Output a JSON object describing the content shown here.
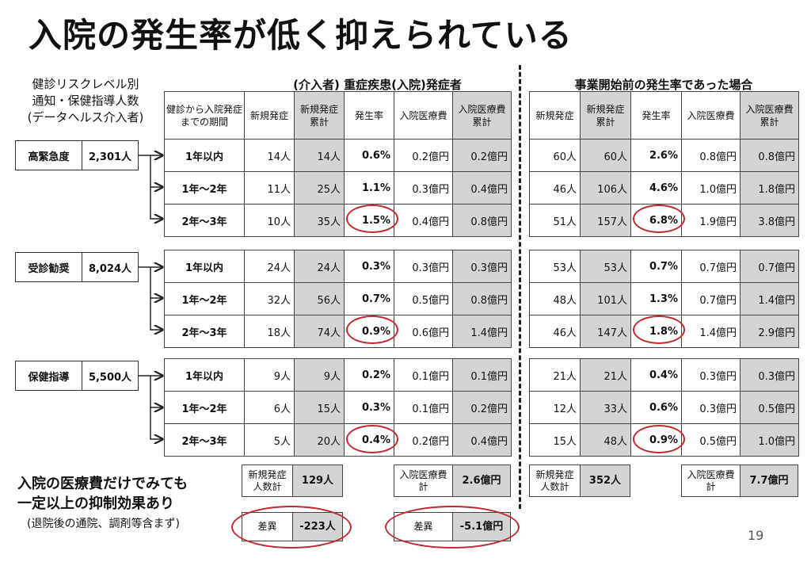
{
  "title": "入院の発生率が低く抑えられている",
  "left_label": [
    "健診リスクレベル別",
    "通知・保健指導人数",
    "(データヘルス介入者)"
  ],
  "group_left_title": "(介入者) 重症疾患(入院)発症者",
  "group_right_title": "事業開始前の発生率であった場合",
  "headers": {
    "period": "健診から入院発症までの期間",
    "new": "新規発症",
    "cum": "新規発症累計",
    "rate": "発生率",
    "cost": "入院医療費",
    "cost_cum": "入院医療費累計"
  },
  "levels": [
    {
      "name": "高緊急度",
      "count": "2,301人"
    },
    {
      "name": "受診勧奨",
      "count": "8,024人"
    },
    {
      "name": "保健指導",
      "count": "5,500人"
    }
  ],
  "periods": [
    "1年以内",
    "1年〜2年",
    "2年〜3年"
  ],
  "left_rows": [
    [
      [
        "14人",
        "14人",
        "0.6%",
        "0.2億円",
        "0.2億円"
      ],
      [
        "11人",
        "25人",
        "1.1%",
        "0.3億円",
        "0.4億円"
      ],
      [
        "10人",
        "35人",
        "1.5%",
        "0.4億円",
        "0.8億円"
      ]
    ],
    [
      [
        "24人",
        "24人",
        "0.3%",
        "0.3億円",
        "0.3億円"
      ],
      [
        "32人",
        "56人",
        "0.7%",
        "0.5億円",
        "0.8億円"
      ],
      [
        "18人",
        "74人",
        "0.9%",
        "0.6億円",
        "1.4億円"
      ]
    ],
    [
      [
        "9人",
        "9人",
        "0.2%",
        "0.1億円",
        "0.1億円"
      ],
      [
        "6人",
        "15人",
        "0.3%",
        "0.1億円",
        "0.2億円"
      ],
      [
        "5人",
        "20人",
        "0.4%",
        "0.2億円",
        "0.4億円"
      ]
    ]
  ],
  "right_rows": [
    [
      [
        "60人",
        "60人",
        "2.6%",
        "0.8億円",
        "0.8億円"
      ],
      [
        "46人",
        "106人",
        "4.6%",
        "1.0億円",
        "1.8億円"
      ],
      [
        "51人",
        "157人",
        "6.8%",
        "1.9億円",
        "3.8億円"
      ]
    ],
    [
      [
        "53人",
        "53人",
        "0.7%",
        "0.7億円",
        "0.7億円"
      ],
      [
        "48人",
        "101人",
        "1.3%",
        "0.7億円",
        "1.4億円"
      ],
      [
        "46人",
        "147人",
        "1.8%",
        "1.4億円",
        "2.9億円"
      ]
    ],
    [
      [
        "21人",
        "21人",
        "0.4%",
        "0.3億円",
        "0.3億円"
      ],
      [
        "12人",
        "33人",
        "0.6%",
        "0.3億円",
        "0.5億円"
      ],
      [
        "15人",
        "48人",
        "0.9%",
        "0.5億円",
        "1.0億円"
      ]
    ]
  ],
  "summary": {
    "left_new_label": "新規発症人数計",
    "left_new_value": "129人",
    "left_cost_label": "入院医療費計",
    "left_cost_value": "2.6億円",
    "right_new_label": "新規発症人数計",
    "right_new_value": "352人",
    "right_cost_label": "入院医療費計",
    "right_cost_value": "7.7億円",
    "diff_label": "差異",
    "diff_people": "-223人",
    "diff_cost_label": "差異",
    "diff_cost": "-5.1億円"
  },
  "note_main": [
    "入院の医療費だけでみても",
    "一定以上の抑制効果あり"
  ],
  "note_sub": "(退院後の通院、調剤等含まず)",
  "page_number": "19",
  "colors": {
    "highlight_circle": "#c0282d",
    "shade": "#d4d4d4"
  }
}
